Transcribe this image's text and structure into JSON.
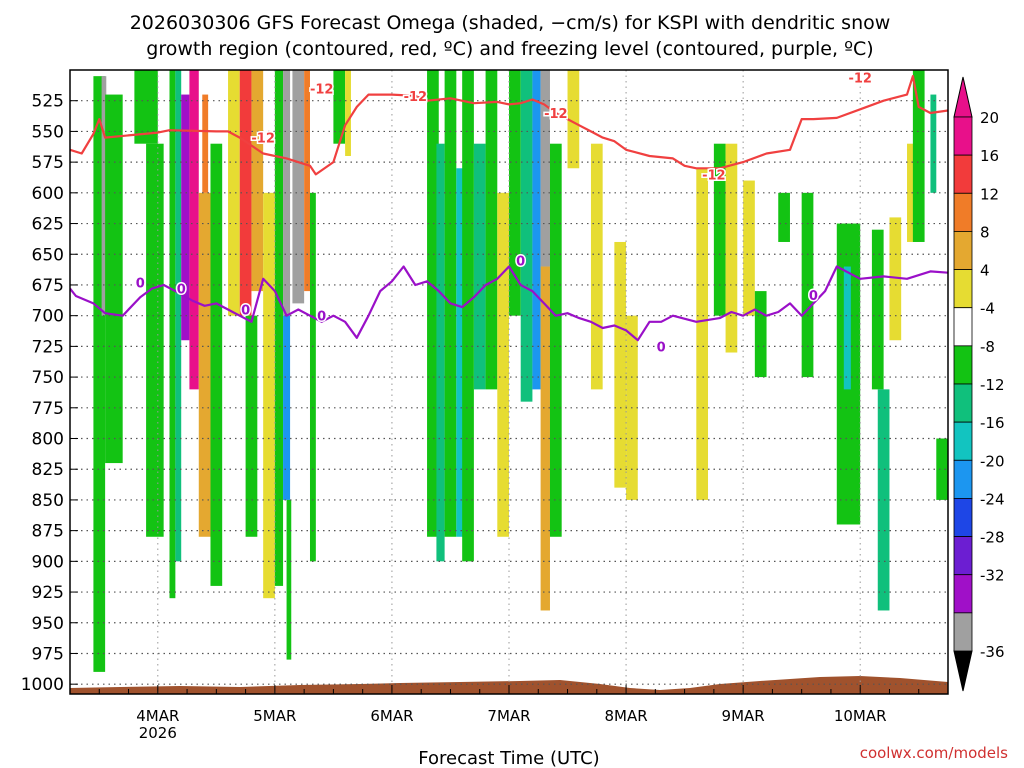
{
  "chart_data": {
    "type": "heatmap",
    "title_line1": "2026030306 GFS Forecast Omega (shaded, −cm/s) for KSPI with dendritic snow",
    "title_line2": "growth region (contoured, red, ºC) and freezing level (contoured, purple, ºC)",
    "xlabel": "Forecast Time (UTC)",
    "credit": "coolwx.com/models",
    "x_unit": "days since 2026-03-03 00 UTC",
    "xlim": [
      0.25,
      7.75
    ],
    "x_ticks": [
      {
        "x": 1,
        "label": "4MAR",
        "sublabel": "2026"
      },
      {
        "x": 2,
        "label": "5MAR",
        "sublabel": ""
      },
      {
        "x": 3,
        "label": "6MAR",
        "sublabel": ""
      },
      {
        "x": 4,
        "label": "7MAR",
        "sublabel": ""
      },
      {
        "x": 5,
        "label": "8MAR",
        "sublabel": ""
      },
      {
        "x": 6,
        "label": "9MAR",
        "sublabel": ""
      },
      {
        "x": 7,
        "label": "10MAR",
        "sublabel": ""
      }
    ],
    "y_unit": "hPa",
    "ylim": [
      1008,
      500
    ],
    "y_ticks": [
      525,
      550,
      575,
      600,
      625,
      650,
      675,
      700,
      725,
      750,
      775,
      800,
      825,
      850,
      875,
      900,
      925,
      950,
      975,
      1000
    ],
    "colorbar": {
      "labels": [
        "20",
        "16",
        "12",
        "8",
        "4",
        "-4",
        "-8",
        "-12",
        "-16",
        "-20",
        "-24",
        "-28",
        "-32",
        "-36"
      ],
      "bands": [
        {
          "lo": 20,
          "hi": 24,
          "color": "#e8108a"
        },
        {
          "lo": 16,
          "hi": 20,
          "color": "#f23b3b"
        },
        {
          "lo": 12,
          "hi": 16,
          "color": "#f07c28"
        },
        {
          "lo": 8,
          "hi": 12,
          "color": "#e4a830"
        },
        {
          "lo": 4,
          "hi": 8,
          "color": "#e6dc32"
        },
        {
          "lo": -4,
          "hi": 4,
          "color": "#ffffff"
        },
        {
          "lo": -8,
          "hi": -4,
          "color": "#13c313"
        },
        {
          "lo": -12,
          "hi": -8,
          "color": "#10c07c"
        },
        {
          "lo": -16,
          "hi": -12,
          "color": "#12c4c0"
        },
        {
          "lo": -20,
          "hi": -16,
          "color": "#1c96f0"
        },
        {
          "lo": -24,
          "hi": -20,
          "color": "#1e46e6"
        },
        {
          "lo": -28,
          "hi": -24,
          "color": "#6c1ed2"
        },
        {
          "lo": -32,
          "hi": -28,
          "color": "#a010c8"
        },
        {
          "lo": -36,
          "hi": -32,
          "color": "#a0a0a0"
        }
      ],
      "top_arrow_color": "#e8108a",
      "bottom_arrow_color": "#000000"
    },
    "series": [
      {
        "name": "dendritic growth -12 ºC",
        "color": "#f04040",
        "label": "-12",
        "x": [
          0.25,
          0.35,
          0.45,
          0.5,
          0.55,
          1.0,
          1.1,
          1.5,
          1.6,
          1.7,
          1.9,
          2.1,
          2.3,
          2.35,
          2.5,
          2.6,
          2.7,
          2.8,
          3.0,
          3.2,
          3.3,
          3.5,
          3.7,
          3.9,
          4.0,
          4.1,
          4.2,
          4.3,
          4.4,
          4.5,
          4.6,
          4.7,
          4.8,
          4.9,
          5.0,
          5.2,
          5.4,
          5.5,
          5.6,
          5.8,
          6.0,
          6.2,
          6.4,
          6.5,
          6.6,
          6.8,
          7.0,
          7.2,
          7.4,
          7.45,
          7.5,
          7.6,
          7.75
        ],
        "y": [
          565,
          568,
          552,
          540,
          555,
          551,
          549,
          550,
          550,
          555,
          568,
          572,
          578,
          585,
          575,
          545,
          530,
          520,
          520,
          521,
          525,
          523,
          527,
          526,
          528,
          527,
          524,
          528,
          535,
          540,
          545,
          550,
          555,
          558,
          565,
          570,
          572,
          578,
          580,
          580,
          575,
          568,
          565,
          540,
          540,
          539,
          532,
          525,
          520,
          505,
          530,
          535,
          533
        ]
      },
      {
        "name": "freezing level 0 ºC",
        "color": "#9a10c8",
        "label": "0",
        "x": [
          0.25,
          0.3,
          0.45,
          0.55,
          0.7,
          0.85,
          0.95,
          1.05,
          1.15,
          1.3,
          1.4,
          1.5,
          1.6,
          1.7,
          1.8,
          1.9,
          2.0,
          2.1,
          2.2,
          2.3,
          2.4,
          2.5,
          2.6,
          2.7,
          2.8,
          2.9,
          3.0,
          3.1,
          3.2,
          3.3,
          3.4,
          3.5,
          3.6,
          3.7,
          3.8,
          3.9,
          4.0,
          4.1,
          4.2,
          4.3,
          4.4,
          4.5,
          4.6,
          4.7,
          4.8,
          4.9,
          5.0,
          5.1,
          5.2,
          5.3,
          5.4,
          5.6,
          5.8,
          5.9,
          6.0,
          6.1,
          6.2,
          6.3,
          6.4,
          6.5,
          6.6,
          6.7,
          6.8,
          7.0,
          7.2,
          7.4,
          7.6,
          7.75
        ],
        "y": [
          678,
          684,
          690,
          698,
          700,
          685,
          678,
          675,
          680,
          688,
          692,
          690,
          695,
          700,
          705,
          670,
          680,
          700,
          695,
          700,
          705,
          700,
          705,
          718,
          700,
          680,
          672,
          660,
          675,
          672,
          680,
          690,
          693,
          685,
          675,
          670,
          660,
          675,
          680,
          690,
          700,
          698,
          702,
          705,
          710,
          708,
          712,
          720,
          705,
          705,
          700,
          705,
          702,
          697,
          700,
          695,
          700,
          697,
          690,
          700,
          690,
          680,
          660,
          670,
          668,
          670,
          664,
          665
        ]
      }
    ],
    "contour_labels": [
      {
        "text": "-12",
        "x": 1.9,
        "y": 555
      },
      {
        "text": "-12",
        "x": 2.4,
        "y": 515
      },
      {
        "text": "-12",
        "x": 3.2,
        "y": 521
      },
      {
        "text": "-12",
        "x": 4.4,
        "y": 535
      },
      {
        "text": "-12",
        "x": 5.75,
        "y": 585
      },
      {
        "text": "-12",
        "x": 7.0,
        "y": 506
      },
      {
        "text": "0",
        "x": 0.85,
        "y": 673
      },
      {
        "text": "0",
        "x": 1.2,
        "y": 678
      },
      {
        "text": "0",
        "x": 1.75,
        "y": 695
      },
      {
        "text": "0",
        "x": 2.4,
        "y": 700
      },
      {
        "text": "0",
        "x": 4.1,
        "y": 655
      },
      {
        "text": "0",
        "x": 5.3,
        "y": 725
      },
      {
        "text": "0",
        "x": 6.6,
        "y": 683
      }
    ],
    "omega_cells": [
      {
        "x": [
          0.45,
          0.55
        ],
        "p": [
          505,
          990
        ],
        "v": -6
      },
      {
        "x": [
          0.52,
          0.56
        ],
        "p": [
          505,
          700
        ],
        "v": -36
      },
      {
        "x": [
          0.55,
          0.7
        ],
        "p": [
          520,
          820
        ],
        "v": -6
      },
      {
        "x": [
          0.8,
          1.0
        ],
        "p": [
          500,
          560
        ],
        "v": -6
      },
      {
        "x": [
          0.9,
          1.05
        ],
        "p": [
          560,
          880
        ],
        "v": -6
      },
      {
        "x": [
          1.1,
          1.15
        ],
        "p": [
          500,
          930
        ],
        "v": -6
      },
      {
        "x": [
          1.15,
          1.2
        ],
        "p": [
          500,
          900
        ],
        "v": -10
      },
      {
        "x": [
          1.2,
          1.27
        ],
        "p": [
          520,
          720
        ],
        "v": -30
      },
      {
        "x": [
          1.27,
          1.35
        ],
        "p": [
          500,
          760
        ],
        "v": 22
      },
      {
        "x": [
          1.35,
          1.45
        ],
        "p": [
          600,
          880
        ],
        "v": 10
      },
      {
        "x": [
          1.38,
          1.43
        ],
        "p": [
          520,
          600
        ],
        "v": 14
      },
      {
        "x": [
          1.45,
          1.55
        ],
        "p": [
          560,
          920
        ],
        "v": -6
      },
      {
        "x": [
          1.6,
          1.7
        ],
        "p": [
          500,
          700
        ],
        "v": 6
      },
      {
        "x": [
          1.7,
          1.8
        ],
        "p": [
          500,
          700
        ],
        "v": 18
      },
      {
        "x": [
          1.8,
          1.9
        ],
        "p": [
          500,
          680
        ],
        "v": 10
      },
      {
        "x": [
          1.75,
          1.85
        ],
        "p": [
          700,
          880
        ],
        "v": -6
      },
      {
        "x": [
          1.9,
          2.0
        ],
        "p": [
          600,
          930
        ],
        "v": 6
      },
      {
        "x": [
          2.0,
          2.07
        ],
        "p": [
          500,
          920
        ],
        "v": -6
      },
      {
        "x": [
          2.07,
          2.13
        ],
        "p": [
          500,
          700
        ],
        "v": -36
      },
      {
        "x": [
          2.07,
          2.13
        ],
        "p": [
          700,
          850
        ],
        "v": -18
      },
      {
        "x": [
          2.1,
          2.14
        ],
        "p": [
          850,
          980
        ],
        "v": -8
      },
      {
        "x": [
          2.15,
          2.25
        ],
        "p": [
          500,
          690
        ],
        "v": -36
      },
      {
        "x": [
          2.25,
          2.3
        ],
        "p": [
          500,
          680
        ],
        "v": 12
      },
      {
        "x": [
          2.3,
          2.35
        ],
        "p": [
          600,
          900
        ],
        "v": -6
      },
      {
        "x": [
          2.5,
          2.6
        ],
        "p": [
          500,
          560
        ],
        "v": -6
      },
      {
        "x": [
          2.6,
          2.65
        ],
        "p": [
          500,
          570
        ],
        "v": 6
      },
      {
        "x": [
          3.3,
          3.4
        ],
        "p": [
          500,
          880
        ],
        "v": -6
      },
      {
        "x": [
          3.38,
          3.45
        ],
        "p": [
          560,
          900
        ],
        "v": -10
      },
      {
        "x": [
          3.45,
          3.55
        ],
        "p": [
          500,
          880
        ],
        "v": -6
      },
      {
        "x": [
          3.55,
          3.62
        ],
        "p": [
          580,
          880
        ],
        "v": -14
      },
      {
        "x": [
          3.6,
          3.7
        ],
        "p": [
          500,
          900
        ],
        "v": -6
      },
      {
        "x": [
          3.7,
          3.8
        ],
        "p": [
          560,
          760
        ],
        "v": -12
      },
      {
        "x": [
          3.8,
          3.9
        ],
        "p": [
          500,
          760
        ],
        "v": -6
      },
      {
        "x": [
          3.9,
          4.0
        ],
        "p": [
          600,
          880
        ],
        "v": 6
      },
      {
        "x": [
          4.0,
          4.1
        ],
        "p": [
          500,
          700
        ],
        "v": -6
      },
      {
        "x": [
          4.1,
          4.2
        ],
        "p": [
          500,
          770
        ],
        "v": -10
      },
      {
        "x": [
          4.2,
          4.27
        ],
        "p": [
          500,
          760
        ],
        "v": -20
      },
      {
        "x": [
          4.27,
          4.35
        ],
        "p": [
          500,
          660
        ],
        "v": -36
      },
      {
        "x": [
          4.27,
          4.35
        ],
        "p": [
          660,
          940
        ],
        "v": 8
      },
      {
        "x": [
          4.35,
          4.45
        ],
        "p": [
          560,
          880
        ],
        "v": -6
      },
      {
        "x": [
          4.5,
          4.6
        ],
        "p": [
          500,
          580
        ],
        "v": 6
      },
      {
        "x": [
          4.7,
          4.8
        ],
        "p": [
          560,
          760
        ],
        "v": 6
      },
      {
        "x": [
          4.9,
          5.0
        ],
        "p": [
          640,
          840
        ],
        "v": 6
      },
      {
        "x": [
          5.0,
          5.1
        ],
        "p": [
          700,
          850
        ],
        "v": 6
      },
      {
        "x": [
          5.6,
          5.7
        ],
        "p": [
          580,
          850
        ],
        "v": 6
      },
      {
        "x": [
          5.75,
          5.85
        ],
        "p": [
          560,
          700
        ],
        "v": -6
      },
      {
        "x": [
          5.85,
          5.95
        ],
        "p": [
          560,
          730
        ],
        "v": 6
      },
      {
        "x": [
          6.0,
          6.1
        ],
        "p": [
          590,
          700
        ],
        "v": 6
      },
      {
        "x": [
          6.1,
          6.2
        ],
        "p": [
          680,
          750
        ],
        "v": -6
      },
      {
        "x": [
          6.3,
          6.4
        ],
        "p": [
          600,
          640
        ],
        "v": -6
      },
      {
        "x": [
          6.5,
          6.6
        ],
        "p": [
          600,
          750
        ],
        "v": -6
      },
      {
        "x": [
          6.8,
          7.0
        ],
        "p": [
          625,
          870
        ],
        "v": -6
      },
      {
        "x": [
          6.86,
          6.92
        ],
        "p": [
          660,
          760
        ],
        "v": -14
      },
      {
        "x": [
          7.1,
          7.2
        ],
        "p": [
          630,
          760
        ],
        "v": -6
      },
      {
        "x": [
          7.15,
          7.25
        ],
        "p": [
          760,
          940
        ],
        "v": -10
      },
      {
        "x": [
          7.25,
          7.35
        ],
        "p": [
          620,
          720
        ],
        "v": 6
      },
      {
        "x": [
          7.4,
          7.5
        ],
        "p": [
          560,
          640
        ],
        "v": 6
      },
      {
        "x": [
          7.45,
          7.55
        ],
        "p": [
          500,
          640
        ],
        "v": -6
      },
      {
        "x": [
          7.6,
          7.65
        ],
        "p": [
          520,
          600
        ],
        "v": -10
      },
      {
        "x": [
          7.65,
          7.75
        ],
        "p": [
          800,
          850
        ],
        "v": -6
      }
    ]
  }
}
